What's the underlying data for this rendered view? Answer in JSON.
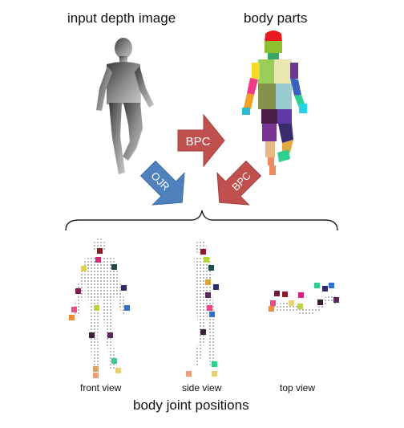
{
  "labels": {
    "input_title": "input depth image",
    "parts_title": "body parts",
    "front_view": "front view",
    "side_view": "side view",
    "top_view": "top view",
    "joints_title": "body joint positions"
  },
  "arrows": {
    "bpc_right": "BPC",
    "ojr": "OJR",
    "bpc_left": "BPC"
  },
  "colors": {
    "bpc_arrow": "#c0504d",
    "ojr_arrow": "#4f81bd",
    "arrow_text": "#ffffff"
  }
}
